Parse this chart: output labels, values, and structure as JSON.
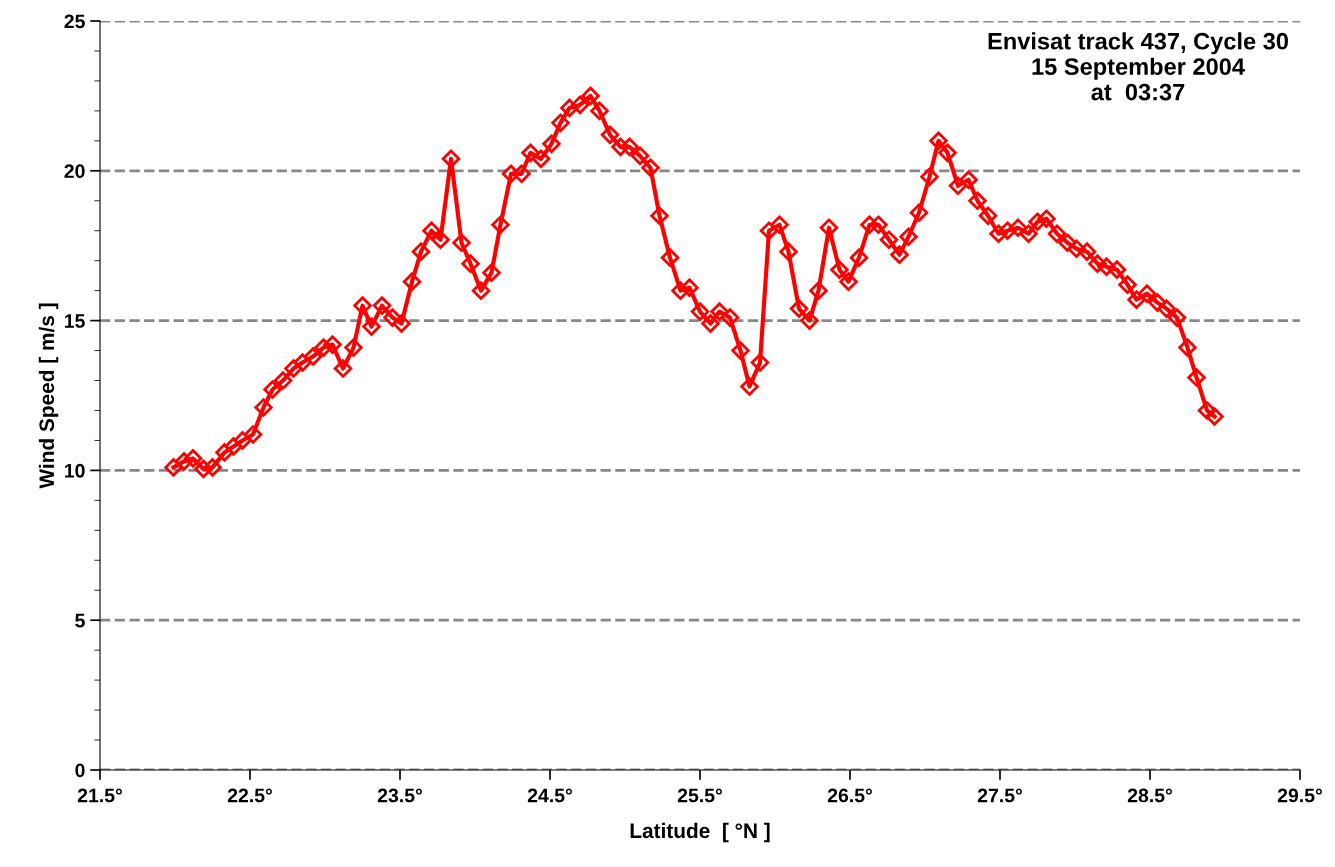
{
  "chart_data": {
    "type": "line",
    "xlabel": "Latitude  [ °N ]",
    "ylabel": "Wind Speed [ m/s ]",
    "annotations": [
      "Envisat track 437, Cycle 30\n15 September 2004\nat  03:37"
    ],
    "xlim": [
      21.5,
      29.5
    ],
    "xticks": [
      {
        "value": 21.5,
        "label": "21.5°"
      },
      {
        "value": 22.5,
        "label": "22.5°"
      },
      {
        "value": 23.5,
        "label": "23.5°"
      },
      {
        "value": 24.5,
        "label": "24.5°"
      },
      {
        "value": 25.5,
        "label": "25.5°"
      },
      {
        "value": 26.5,
        "label": "26.5°"
      },
      {
        "value": 27.5,
        "label": "27.5°"
      },
      {
        "value": 28.5,
        "label": "28.5°"
      },
      {
        "value": 29.5,
        "label": "29.5°"
      }
    ],
    "ylim": [
      0,
      25
    ],
    "yticks": [
      0,
      5,
      10,
      15,
      20,
      25
    ],
    "grid": "y",
    "legend": false,
    "marker": "diamond",
    "line_style": "solid",
    "series": [
      {
        "color": "#ff0000",
        "x": [
          21.99,
          22.06,
          22.12,
          22.19,
          22.25,
          22.33,
          22.39,
          22.45,
          22.52,
          22.59,
          22.65,
          22.72,
          22.79,
          22.85,
          22.92,
          22.99,
          23.05,
          23.12,
          23.19,
          23.25,
          23.31,
          23.38,
          23.45,
          23.51,
          23.58,
          23.64,
          23.71,
          23.77,
          23.84,
          23.91,
          23.97,
          24.04,
          24.11,
          24.17,
          24.24,
          24.31,
          24.37,
          24.44,
          24.51,
          24.57,
          24.63,
          24.7,
          24.77,
          24.83,
          24.9,
          24.97,
          25.03,
          25.1,
          25.17,
          25.23,
          25.3,
          25.37,
          25.43,
          25.5,
          25.57,
          25.63,
          25.7,
          25.77,
          25.83,
          25.9,
          25.96,
          26.03,
          26.09,
          26.16,
          26.23,
          26.29,
          26.36,
          26.43,
          26.49,
          26.56,
          26.63,
          26.69,
          26.76,
          26.83,
          26.89,
          26.96,
          27.03,
          27.09,
          27.15,
          27.22,
          27.29,
          27.35,
          27.42,
          27.49,
          27.55,
          27.62,
          27.69,
          27.75,
          27.81,
          27.88,
          27.95,
          28.01,
          28.08,
          28.15,
          28.21,
          28.28,
          28.35,
          28.41,
          28.48,
          28.55,
          28.61,
          28.68,
          28.75,
          28.81,
          28.88,
          28.93
        ],
        "values": [
          10.1,
          10.3,
          10.4,
          10.05,
          10.1,
          10.6,
          10.8,
          11.0,
          11.2,
          12.1,
          12.7,
          13.0,
          13.4,
          13.6,
          13.8,
          14.1,
          14.2,
          13.4,
          14.1,
          15.5,
          14.8,
          15.5,
          15.1,
          14.9,
          16.3,
          17.3,
          18.0,
          17.7,
          20.4,
          17.6,
          16.9,
          16.0,
          16.6,
          18.2,
          19.9,
          19.9,
          20.6,
          20.4,
          20.9,
          21.6,
          22.1,
          22.2,
          22.5,
          22.0,
          21.2,
          20.8,
          20.8,
          20.5,
          20.1,
          18.5,
          17.1,
          16.0,
          16.1,
          15.3,
          14.9,
          15.3,
          15.1,
          14.0,
          12.8,
          13.6,
          18.0,
          18.2,
          17.3,
          15.4,
          15.0,
          16.0,
          18.1,
          16.7,
          16.3,
          17.1,
          18.2,
          18.2,
          17.7,
          17.2,
          17.8,
          18.6,
          19.8,
          21.0,
          20.6,
          19.5,
          19.7,
          19.0,
          18.5,
          17.9,
          18.0,
          18.1,
          17.9,
          18.3,
          18.4,
          17.9,
          17.6,
          17.4,
          17.3,
          16.9,
          16.8,
          16.7,
          16.2,
          15.7,
          15.9,
          15.6,
          15.4,
          15.1,
          14.1,
          13.1,
          12.0,
          11.8
        ]
      }
    ]
  }
}
